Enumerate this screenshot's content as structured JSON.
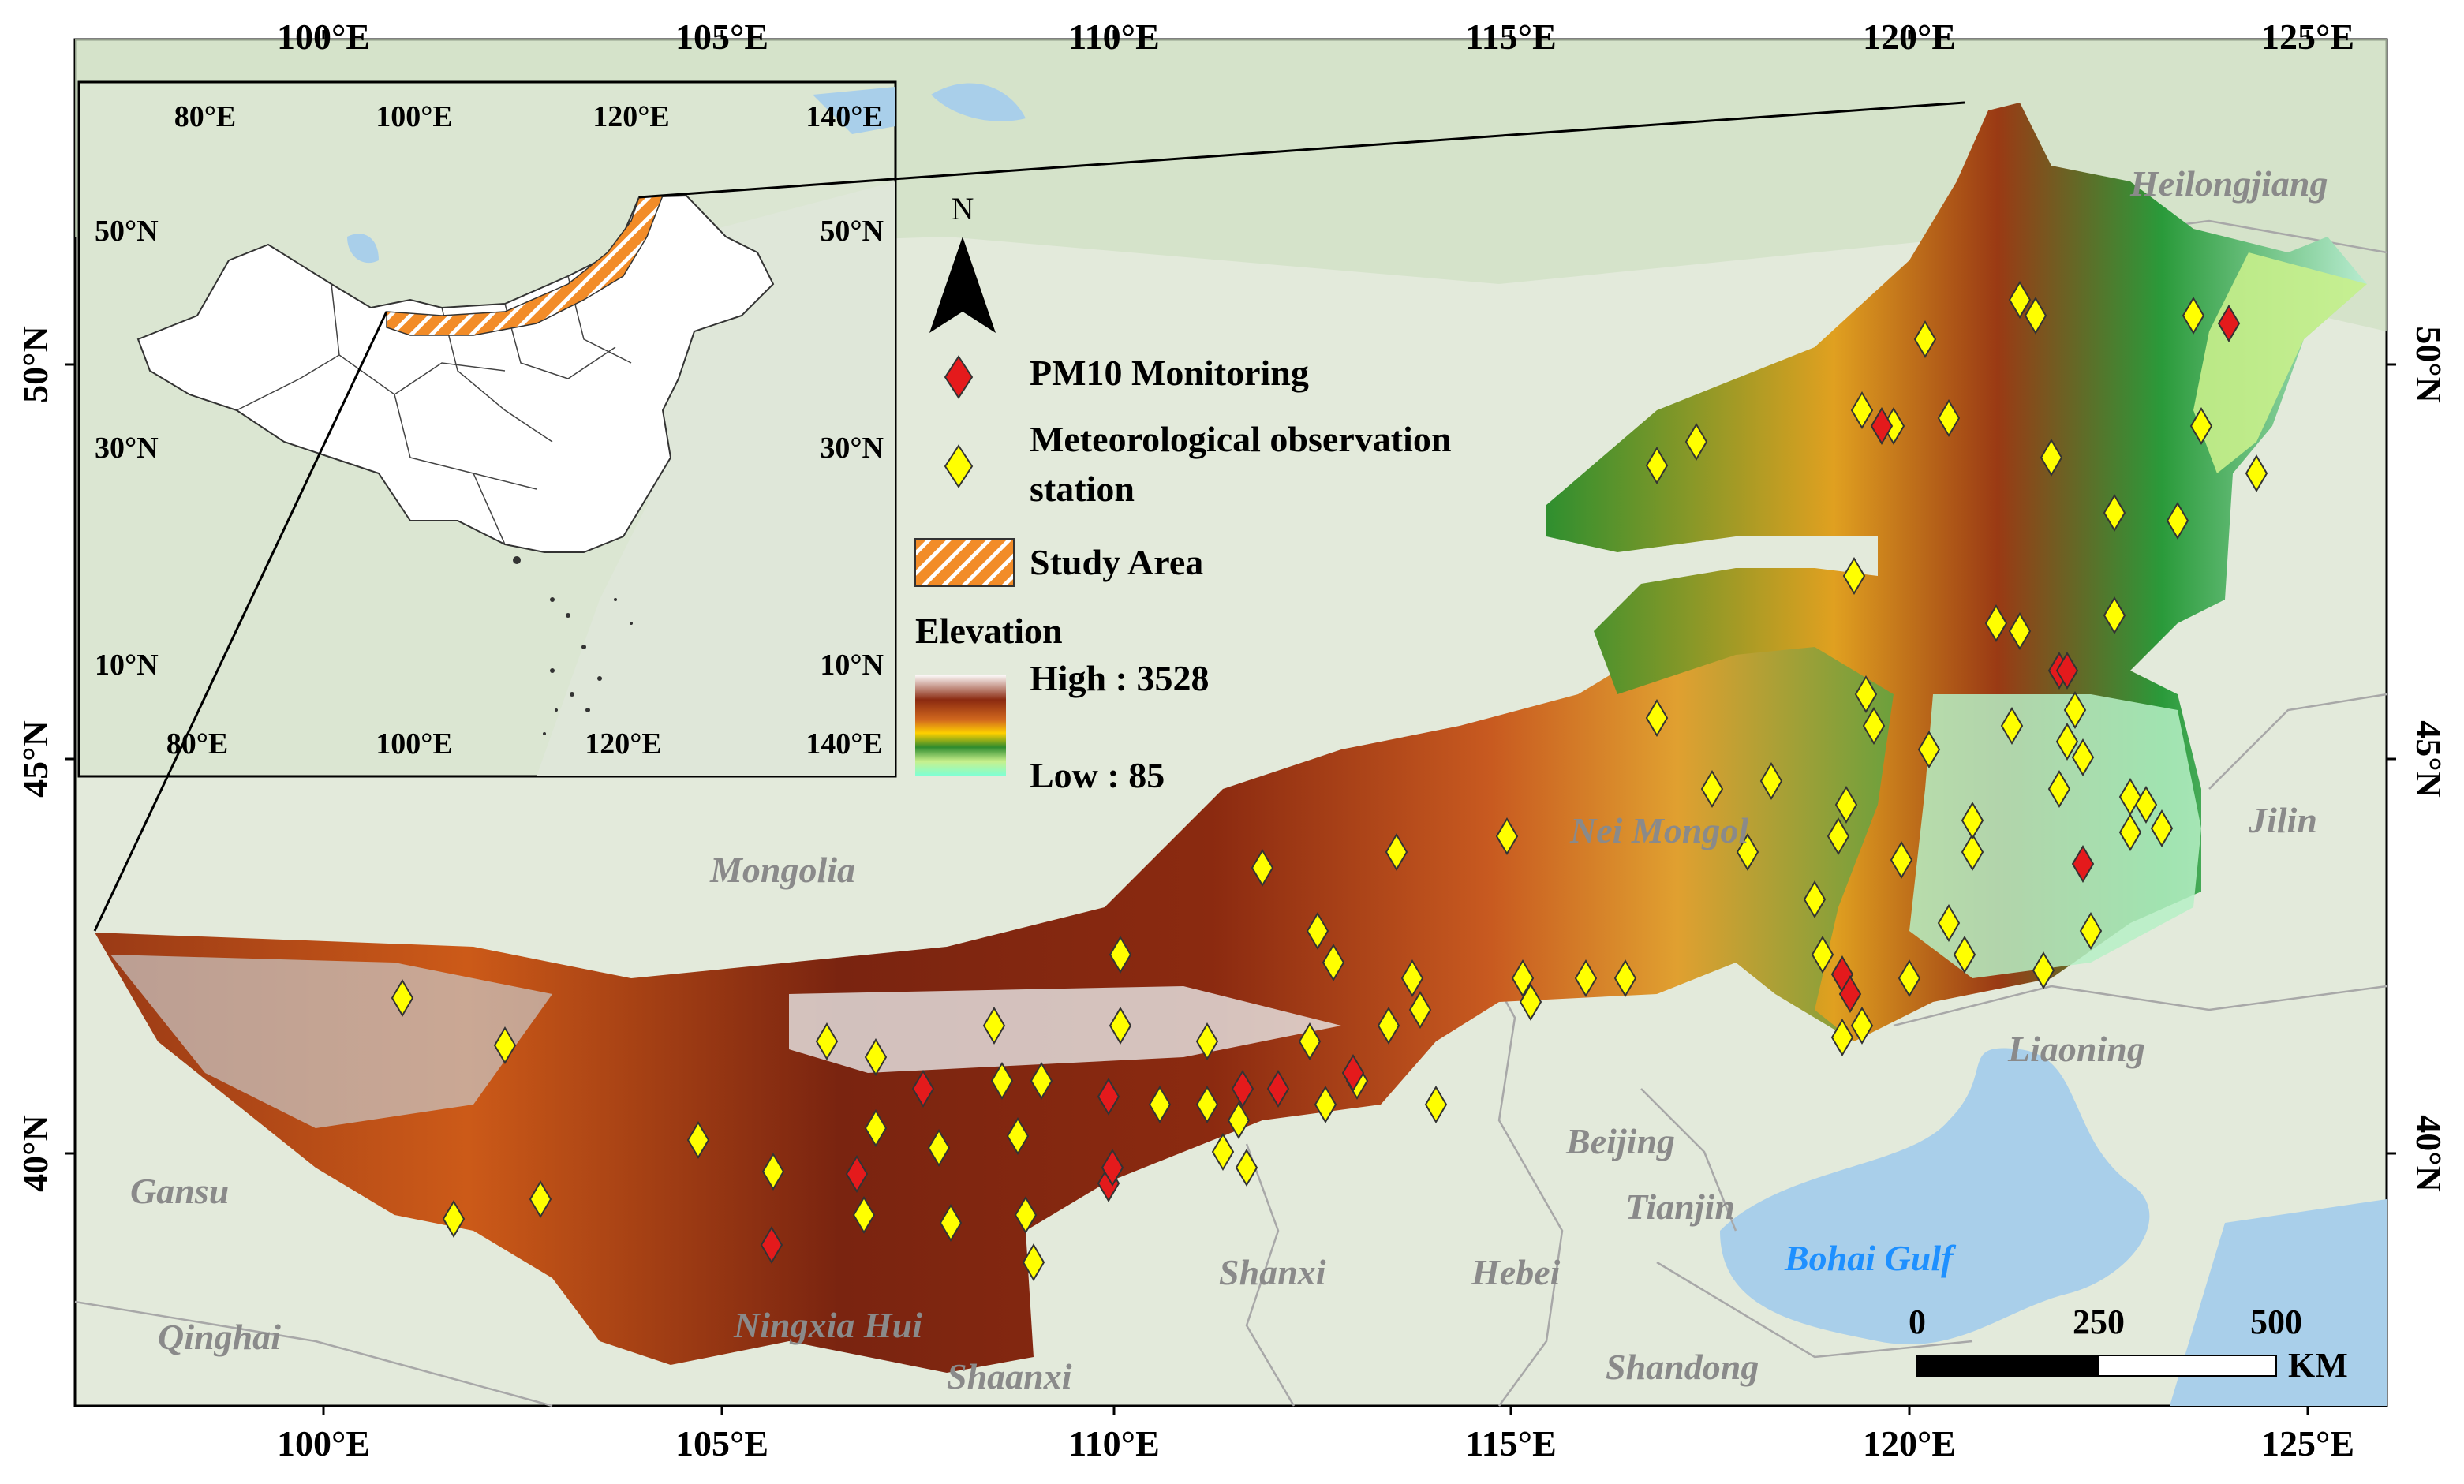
{
  "map": {
    "top_ticks": [
      "100°E",
      "105°E",
      "110°E",
      "115°E",
      "120°E",
      "125°E"
    ],
    "bottom_ticks": [
      "100°E",
      "105°E",
      "110°E",
      "115°E",
      "120°E",
      "125°E"
    ],
    "left_ticks": [
      "50°N",
      "45°N",
      "40°N"
    ],
    "right_ticks": [
      "50°N",
      "45°N",
      "40°N"
    ],
    "regions": [
      {
        "name": "Heilongjiang"
      },
      {
        "name": "Mongolia"
      },
      {
        "name": "Nei Mongol"
      },
      {
        "name": "Jilin"
      },
      {
        "name": "Liaoning"
      },
      {
        "name": "Beijing"
      },
      {
        "name": "Tianjin"
      },
      {
        "name": "Hebei"
      },
      {
        "name": "Shanxi"
      },
      {
        "name": "Gansu"
      },
      {
        "name": "Qinghai"
      },
      {
        "name": "Ningxia Hui"
      },
      {
        "name": "Shaanxi"
      },
      {
        "name": "Shandong"
      }
    ],
    "sea_label": "Bohai Gulf",
    "colors": {
      "pm10": "#e41a1c",
      "met_station": "#ffff00",
      "study_area": "#f28c28",
      "sea": "#a9cfea",
      "background": "#dfe8d8"
    }
  },
  "inset": {
    "top_ticks": [
      "80°E",
      "100°E",
      "120°E",
      "140°E"
    ],
    "bottom_ticks": [
      "80°E",
      "100°E",
      "120°E",
      "140°E"
    ],
    "left_ticks": [
      "50°N",
      "30°N",
      "10°N"
    ],
    "right_ticks": [
      "50°N",
      "30°N",
      "10°N"
    ]
  },
  "north_arrow": {
    "label": "N"
  },
  "legend": {
    "pm10_label": "PM10 Monitoring",
    "met_label_line1": "Meteorological observation",
    "met_label_line2": "station",
    "study_area_label": "Study Area",
    "elevation_title": "Elevation",
    "elevation_high": "High : 3528",
    "elevation_low": "Low : 85"
  },
  "scale_bar": {
    "labels": [
      "0",
      "250",
      "500"
    ],
    "unit": "KM"
  }
}
